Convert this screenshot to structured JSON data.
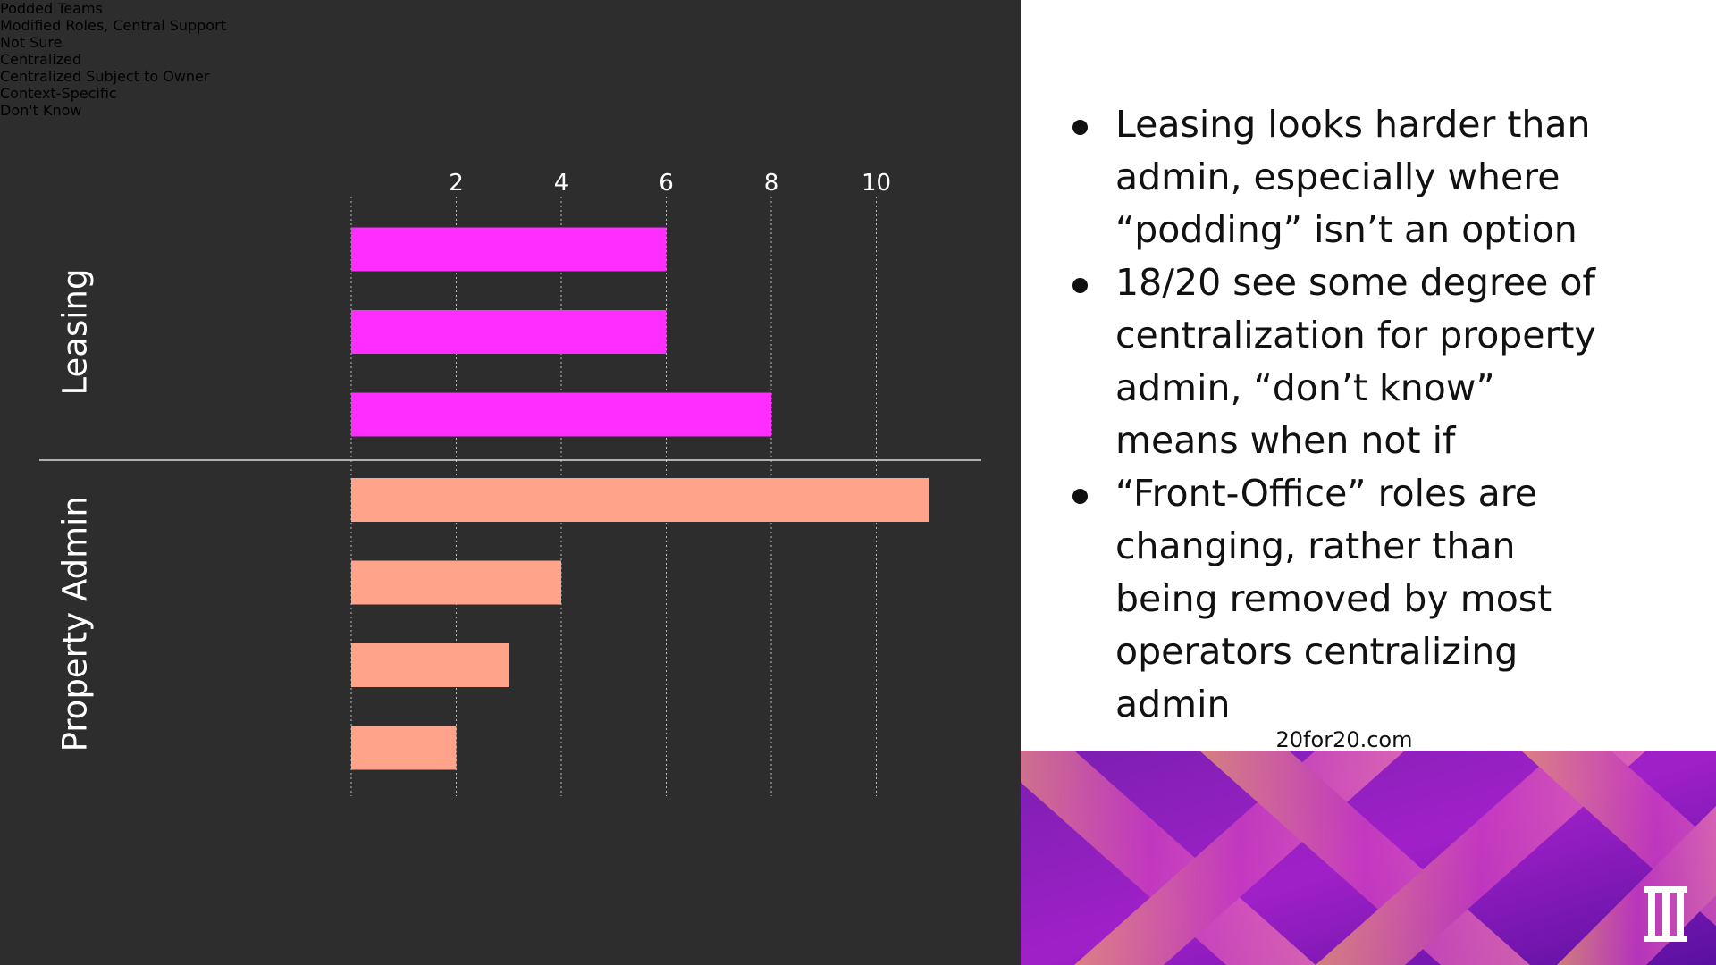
{
  "chart_data": {
    "type": "bar",
    "xlim": [
      0,
      12
    ],
    "xticks": [
      2,
      4,
      6,
      8,
      10
    ],
    "grid": true,
    "groups": [
      {
        "name": "Leasing",
        "color": "#ff2dff",
        "categories": [
          "Podded Teams",
          "Modified Roles,\nCentral Support",
          "Not Sure"
        ],
        "values": [
          6,
          6,
          8
        ]
      },
      {
        "name": "Property Admin",
        "color": "#ffa38a",
        "categories": [
          "Centralized",
          "Centralized\nSubject to Owner",
          "Context-Specific",
          "Don't Know"
        ],
        "values": [
          11,
          4,
          3,
          2
        ]
      }
    ]
  },
  "bullets": [
    "Leasing looks harder than admin, especially where “podding” isn’t an option",
    "18/20 see some degree of centralization for property admin, “don’t know” means when not if",
    "“Front-Office” roles are changing, rather than being removed by most operators centralizing admin"
  ],
  "footer": {
    "site": "20for20.com"
  }
}
